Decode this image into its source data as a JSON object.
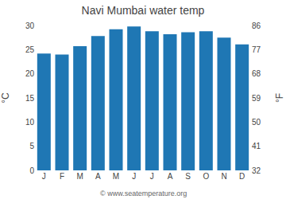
{
  "chart_data": {
    "type": "bar",
    "title": "Navi Mumbai water temp",
    "categories": [
      "J",
      "F",
      "M",
      "A",
      "M",
      "J",
      "J",
      "A",
      "S",
      "O",
      "N",
      "D"
    ],
    "values": [
      24.2,
      24.0,
      25.7,
      27.8,
      29.2,
      29.8,
      28.8,
      28.2,
      28.6,
      28.8,
      27.5,
      26.1
    ],
    "ylabel": "°C",
    "y2label": "°F",
    "ylim": [
      0,
      30
    ],
    "yticks": [
      0,
      5,
      10,
      15,
      20,
      25,
      30
    ],
    "y2lim": [
      32,
      86
    ],
    "y2ticks": [
      32,
      41,
      50,
      59,
      68,
      77,
      86
    ],
    "annotations": [
      "© www.seatemperature.org"
    ],
    "grid": false
  }
}
